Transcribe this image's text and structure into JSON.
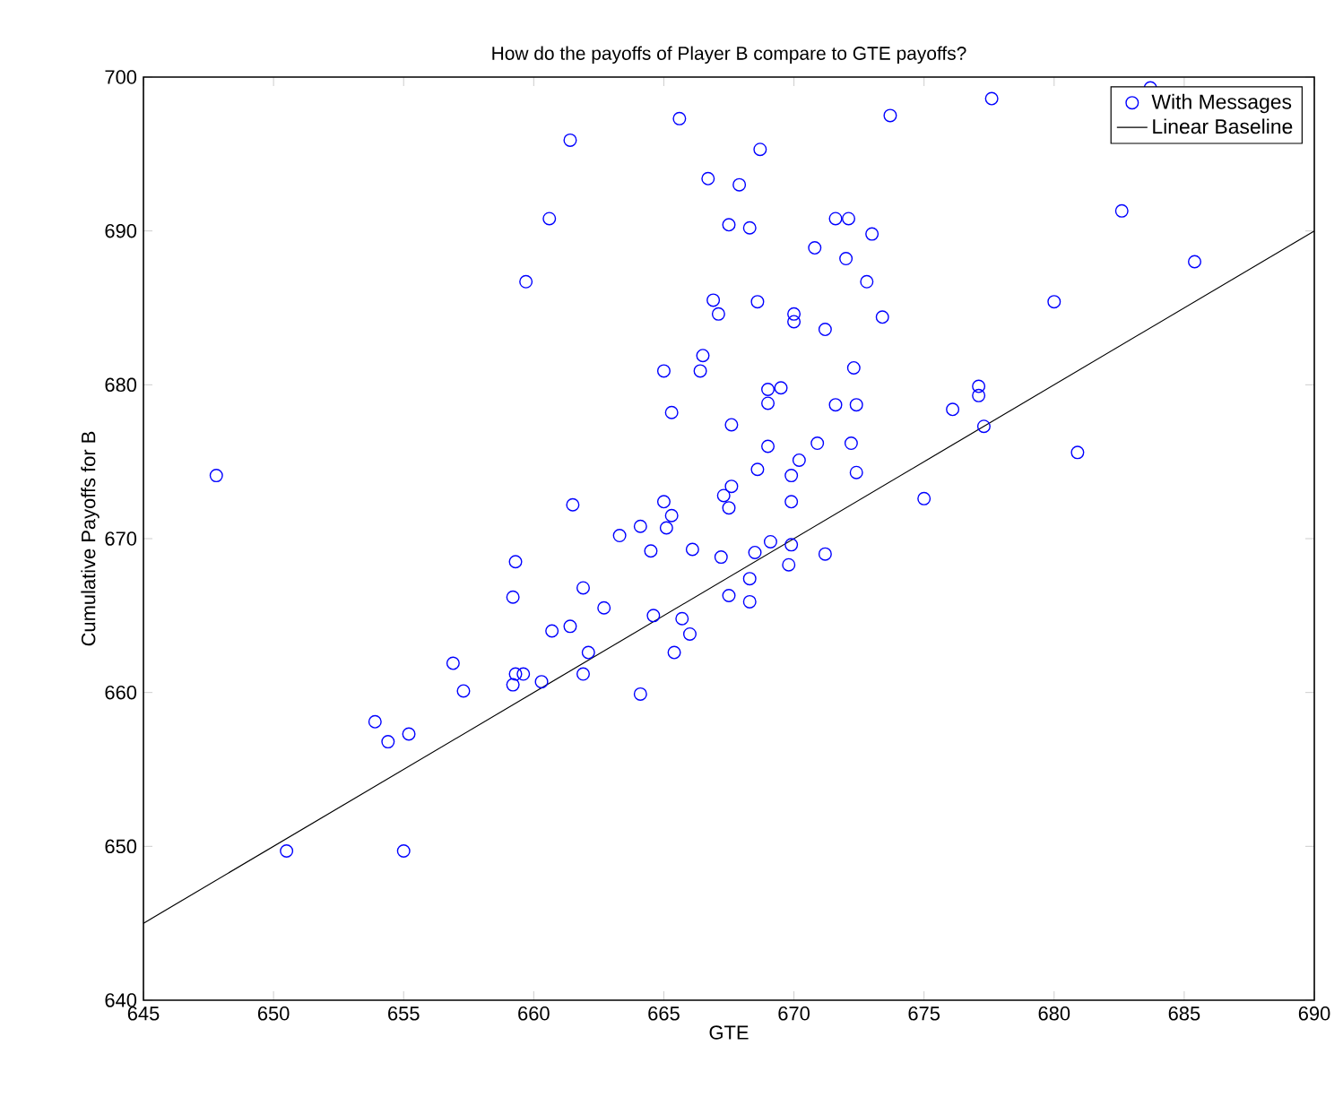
{
  "chart_data": {
    "type": "scatter",
    "title": "How do the payoffs of Player B compare to GTE payoffs?",
    "xlabel": "GTE",
    "ylabel": "Cumulative Payoffs for B",
    "xlim": [
      645,
      690
    ],
    "ylim": [
      640,
      700
    ],
    "xticks": [
      645,
      650,
      655,
      660,
      665,
      670,
      675,
      680,
      685,
      690
    ],
    "yticks": [
      640,
      650,
      660,
      670,
      680,
      690,
      700
    ],
    "legend": "top right",
    "marker": "circle",
    "series": [
      {
        "name": "With Messages",
        "color": "#0000ff",
        "x": [
          665.6,
          661.4,
          666.7,
          667.9,
          660.6,
          667.5,
          659.7,
          666.9,
          667.1,
          666.5,
          665.0,
          666.4,
          665.3,
          667.6,
          647.8,
          661.5,
          665.0,
          665.3,
          665.1,
          667.3,
          667.5,
          663.3,
          664.1,
          664.5,
          666.1,
          667.2,
          659.3,
          683.7,
          677.6,
          673.7,
          668.7,
          668.3,
          671.6,
          672.1,
          673.0,
          670.8,
          672.0,
          672.8,
          682.6,
          685.4,
          680.0,
          668.6,
          670.0,
          670.0,
          671.2,
          673.4,
          672.3,
          669.0,
          669.5,
          669.0,
          671.6,
          672.4,
          676.1,
          677.1,
          677.1,
          677.3,
          680.9,
          669.0,
          670.9,
          672.2,
          670.2,
          668.6,
          669.9,
          672.4,
          667.6,
          669.9,
          675.0,
          669.1,
          669.9,
          671.2,
          668.5,
          659.2,
          661.9,
          662.7,
          667.5,
          660.7,
          661.4,
          664.6,
          665.7,
          666.0,
          665.4,
          662.1,
          661.9,
          656.9,
          657.3,
          659.2,
          659.3,
          659.6,
          660.3,
          664.1,
          653.9,
          654.4,
          655.2,
          650.5,
          655.0,
          668.3,
          668.3,
          669.8
        ],
        "values": [
          697.3,
          695.9,
          693.4,
          693.0,
          690.8,
          690.4,
          686.7,
          685.5,
          684.6,
          681.9,
          680.9,
          680.9,
          678.2,
          677.4,
          674.1,
          672.2,
          672.4,
          671.5,
          670.7,
          672.8,
          672.0,
          670.2,
          670.8,
          669.2,
          669.3,
          668.8,
          668.5,
          699.3,
          698.6,
          697.5,
          695.3,
          690.2,
          690.8,
          690.8,
          689.8,
          688.9,
          688.2,
          686.7,
          691.3,
          688.0,
          685.4,
          685.4,
          684.6,
          684.1,
          683.6,
          684.4,
          681.1,
          679.7,
          679.8,
          678.8,
          678.7,
          678.7,
          678.4,
          679.9,
          679.3,
          677.3,
          675.6,
          676.0,
          676.2,
          676.2,
          675.1,
          674.5,
          674.1,
          674.3,
          673.4,
          672.4,
          672.6,
          669.8,
          669.6,
          669.0,
          669.1,
          666.2,
          666.8,
          665.5,
          666.3,
          664.0,
          664.3,
          665.0,
          664.8,
          663.8,
          662.6,
          662.6,
          661.2,
          661.9,
          660.1,
          660.5,
          661.2,
          661.2,
          660.7,
          659.9,
          658.1,
          656.8,
          657.3,
          649.7,
          649.7,
          665.9,
          667.4,
          668.3
        ]
      },
      {
        "name": "Linear Baseline",
        "type": "line",
        "color": "#000000",
        "marker": "none",
        "x": [
          645,
          690
        ],
        "values": [
          645,
          690
        ]
      }
    ]
  }
}
